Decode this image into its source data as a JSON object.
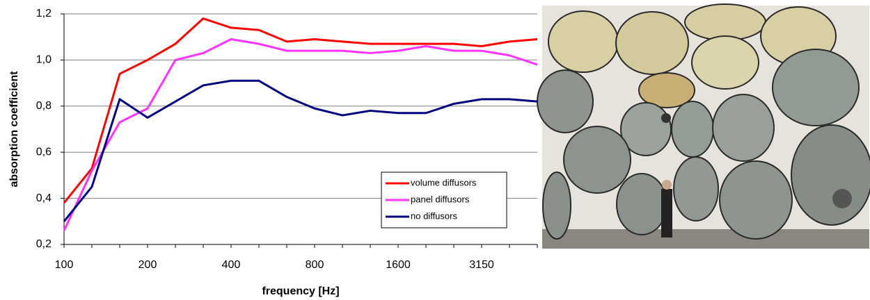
{
  "chart_data": {
    "type": "line",
    "y_label": "absorption coefficient",
    "x_label": "frequency [Hz]",
    "categories": [
      "100",
      null,
      null,
      "200",
      null,
      null,
      "400",
      null,
      null,
      "800",
      null,
      null,
      "1600",
      null,
      null,
      "3150",
      null,
      null
    ],
    "series": [
      {
        "name": "volume diffusors",
        "color": "#ff0000",
        "values": [
          0.38,
          0.53,
          0.94,
          1.0,
          1.07,
          1.18,
          1.14,
          1.13,
          1.08,
          1.09,
          1.08,
          1.07,
          1.07,
          1.07,
          1.07,
          1.06,
          1.08,
          1.09
        ]
      },
      {
        "name": "panel diffusors",
        "color": "#ff33ff",
        "values": [
          0.26,
          0.52,
          0.73,
          0.79,
          1.0,
          1.03,
          1.09,
          1.07,
          1.04,
          1.04,
          1.04,
          1.03,
          1.04,
          1.06,
          1.04,
          1.04,
          1.02,
          0.98
        ]
      },
      {
        "name": "no diffusors",
        "color": "#000080",
        "values": [
          0.3,
          0.45,
          0.83,
          0.75,
          0.82,
          0.89,
          0.91,
          0.91,
          0.84,
          0.79,
          0.76,
          0.78,
          0.77,
          0.77,
          0.81,
          0.83,
          0.83,
          0.82
        ]
      }
    ],
    "ylim": [
      0.2,
      1.2
    ],
    "yticks": [
      {
        "value": 0.2,
        "label": "0,2"
      },
      {
        "value": 0.4,
        "label": "0,4"
      },
      {
        "value": 0.6,
        "label": "0,6"
      },
      {
        "value": 0.8,
        "label": "0,8"
      },
      {
        "value": 1.0,
        "label": "1,0"
      },
      {
        "value": 1.2,
        "label": "1,2"
      }
    ],
    "grid": true,
    "legend": "lower right"
  }
}
